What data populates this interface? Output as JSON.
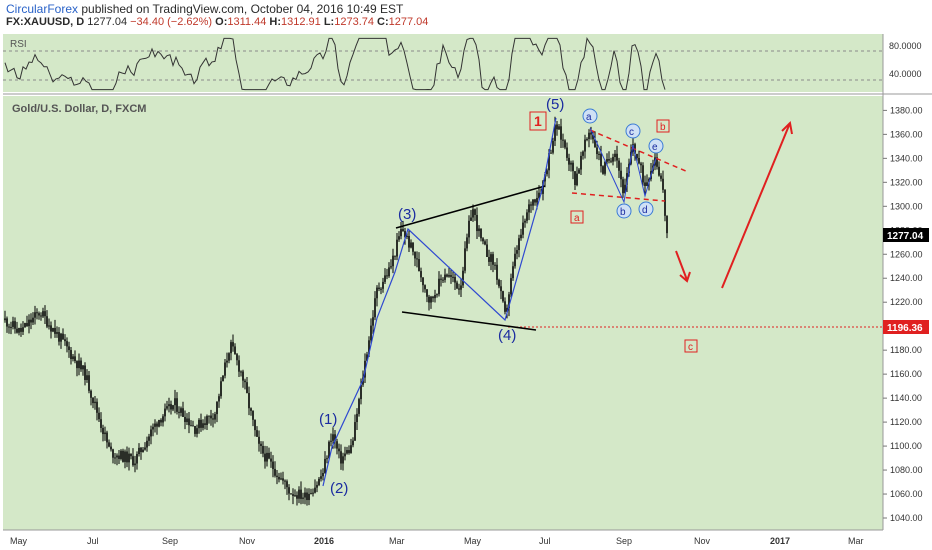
{
  "header": {
    "brand": "CircularForex",
    "published": " published on TradingView.com, October 04, 2016 10:49 EST",
    "symbol": "FX:XAUUSD, D",
    "last": "1277.04",
    "change": "−34.40 (−2.62%)",
    "o_label": "O:",
    "o_value": "1311.44",
    "h_label": "H:",
    "h_value": "1312.91",
    "l_label": "L:",
    "l_value": "1273.74",
    "c_label": "C:",
    "c_value": "1277.04"
  },
  "rsi_panel": {
    "label": "RSI",
    "ticks": [
      "80.0000",
      "40.0000"
    ]
  },
  "price_panel": {
    "label": "Gold/U.S. Dollar, D, FXCM",
    "last_price_tag": "1277.04",
    "level_tag": "1196.36"
  },
  "colors": {
    "background": "#d4e8c8",
    "candle": "#000000",
    "wave_line": "#2f49d1",
    "wave_label": "#1a2ba0",
    "annotation_red": "#e02020",
    "subwave_circle": "#3a7bd5"
  },
  "annotations": {
    "wave_labels": [
      "(1)",
      "(2)",
      "(3)",
      "(4)",
      "(5)"
    ],
    "box_1": "1",
    "box_a": "a",
    "box_b": "b",
    "box_c": "c",
    "circles": [
      "a",
      "b",
      "c",
      "d",
      "e"
    ]
  },
  "chart_data": {
    "type": "candlestick",
    "title": "Gold/U.S. Dollar, D, FXCM",
    "x_ticks": [
      "May",
      "Jul",
      "Sep",
      "Nov",
      "2016",
      "Mar",
      "May",
      "Jul",
      "Sep",
      "Nov",
      "2017",
      "Mar"
    ],
    "y_ticks": [
      1040,
      1060,
      1080,
      1100,
      1120,
      1140,
      1160,
      1180,
      1200,
      1220,
      1240,
      1260,
      1280,
      1300,
      1320,
      1340,
      1360,
      1380
    ],
    "ylim": [
      1030,
      1392
    ],
    "rsi_levels": [
      80,
      40
    ],
    "last_price": 1277.04,
    "horizontal_level": 1196.36,
    "waves": [
      {
        "label": "(1)",
        "price": 1112
      },
      {
        "label": "(2)",
        "price": 1073
      },
      {
        "label": "(3)",
        "price": 1284
      },
      {
        "label": "(4)",
        "price": 1200
      },
      {
        "label": "(5)",
        "price": 1378
      }
    ]
  }
}
